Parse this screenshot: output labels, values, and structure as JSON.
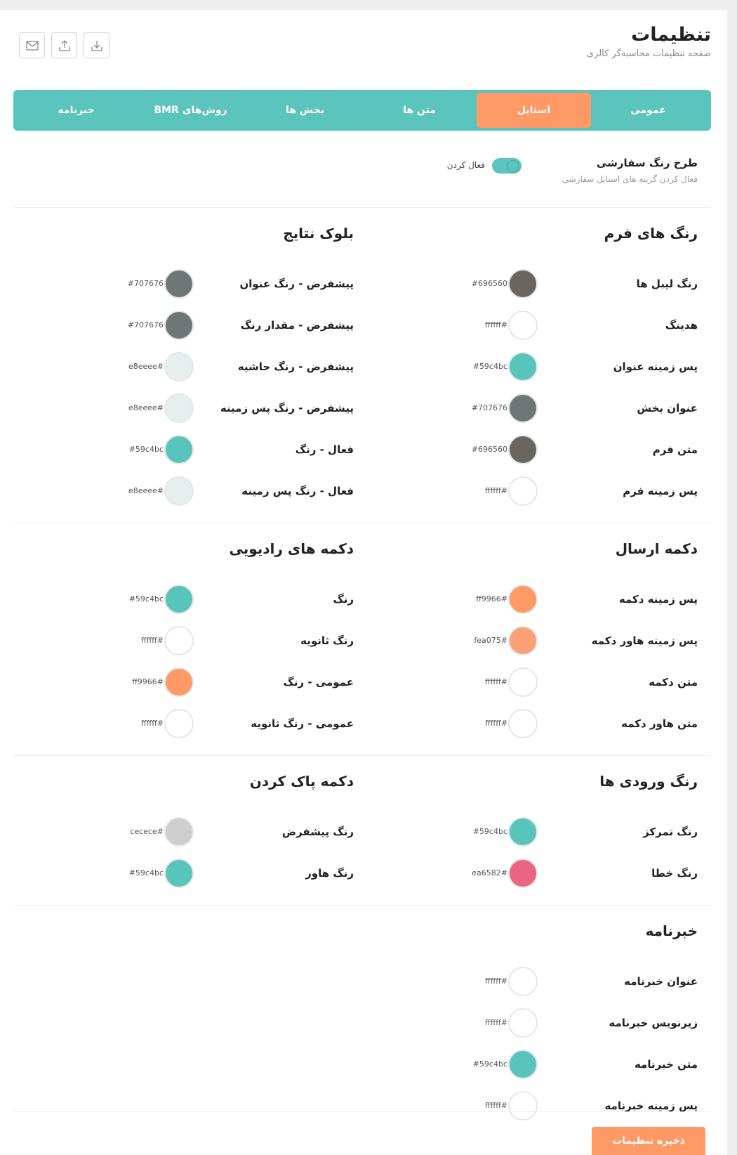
{
  "header": {
    "title": "تنظیمات",
    "subtitle": "صفحه تنظیمات محاسبه‌گر کالری"
  },
  "tabs": [
    "عمومی",
    "استایل",
    "متن ها",
    "بخش ها",
    "روش‌های BMR",
    "خبرنامه"
  ],
  "active_tab": 1,
  "toggle": {
    "title": "طرح رنگ سفارشی",
    "description": "فعال کردن گزینه های استایل سفارشی",
    "label": "فعال کردن",
    "on": true
  },
  "rows": [
    [
      {
        "title": "رنگ های فرم",
        "items": [
          {
            "label": "رنگ لیبل ها",
            "color": "#696560"
          },
          {
            "label": "هدینگ",
            "color": "#ffffff"
          },
          {
            "label": "پس زمینه عنوان",
            "color": "#59c4bc"
          },
          {
            "label": "عنوان بخش",
            "color": "#707676"
          },
          {
            "label": "متن فرم",
            "color": "#696560"
          },
          {
            "label": "پس زمینه فرم",
            "color": "#ffffff"
          }
        ]
      },
      {
        "title": "بلوک نتایج",
        "items": [
          {
            "label": "پیشفرض - رنگ عنوان",
            "color": "#707676"
          },
          {
            "label": "پیشفرض - مقدار رنگ",
            "color": "#707676"
          },
          {
            "label": "پیشفرض - رنگ حاشیه",
            "color": "#e8eeee"
          },
          {
            "label": "پیشفرض - رنگ پس زمینه",
            "color": "#e8eeee"
          },
          {
            "label": "فعال - رنگ",
            "color": "#59c4bc"
          },
          {
            "label": "فعال - رنگ پس زمینه",
            "color": "#e8eeee"
          }
        ]
      }
    ],
    [
      {
        "title": "دکمه ارسال",
        "items": [
          {
            "label": "پس زمینه دکمه",
            "color": "#ff9966"
          },
          {
            "label": "پس زمینه هاور دکمه",
            "color": "#fea075"
          },
          {
            "label": "متن دکمه",
            "color": "#ffffff"
          },
          {
            "label": "متن هاور دکمه",
            "color": "#ffffff"
          }
        ]
      },
      {
        "title": "دکمه های رادیویی",
        "items": [
          {
            "label": "رنگ",
            "color": "#59c4bc"
          },
          {
            "label": "رنگ ثانویه",
            "color": "#ffffff"
          },
          {
            "label": "عمومی - رنگ",
            "color": "#ff9966"
          },
          {
            "label": "عمومی - رنگ ثانویه",
            "color": "#ffffff"
          }
        ]
      }
    ],
    [
      {
        "title": "رنگ ورودی ها",
        "items": [
          {
            "label": "رنگ تمرکز",
            "color": "#59c4bc"
          },
          {
            "label": "رنگ خطا",
            "color": "#ea6582"
          }
        ]
      },
      {
        "title": "دکمه پاک کردن",
        "items": [
          {
            "label": "رنگ پیشفرض",
            "color": "#cecece"
          },
          {
            "label": "رنگ هاور",
            "color": "#59c4bc"
          }
        ]
      }
    ],
    [
      {
        "title": "خبرنامه",
        "items": [
          {
            "label": "عنوان خبرنامه",
            "color": "#ffffff"
          },
          {
            "label": "زیرنویس خبرنامه",
            "color": "#ffffff"
          },
          {
            "label": "متن خبرنامه",
            "color": "#59c4bc"
          },
          {
            "label": "پس زمینه خبرنامه",
            "color": "#ffffff"
          }
        ]
      }
    ]
  ],
  "save_button": "ذخیره تنظیمات"
}
